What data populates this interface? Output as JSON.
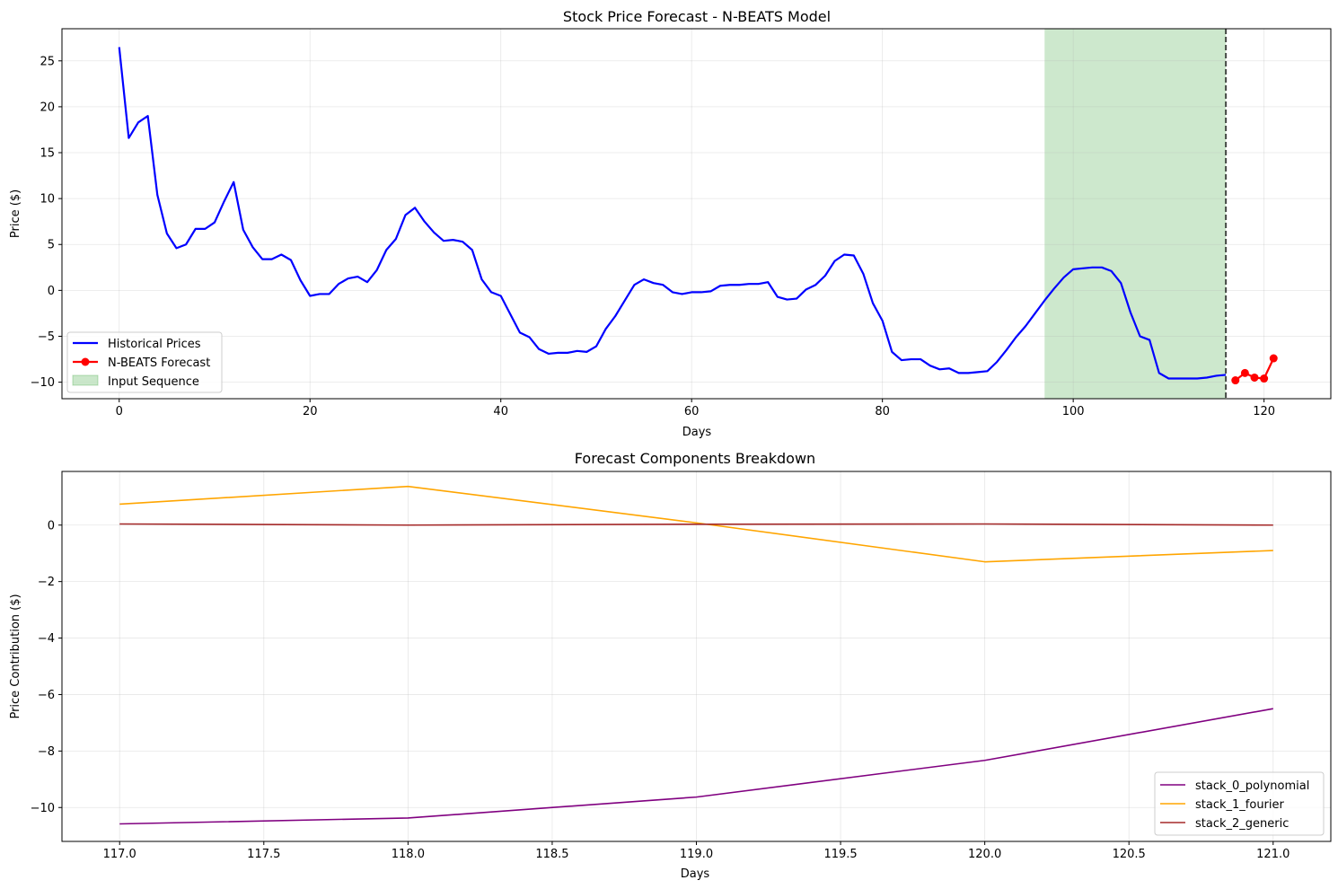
{
  "chart_data": [
    {
      "type": "line",
      "title": "Stock Price Forecast - N-BEATS Model",
      "xlabel": "Days",
      "ylabel": "Price ($)",
      "xlim": [
        -6,
        127
      ],
      "ylim": [
        -11.8,
        28.5
      ],
      "xticks": [
        0,
        20,
        40,
        60,
        80,
        100,
        120
      ],
      "yticks": [
        -10,
        -5,
        0,
        5,
        10,
        15,
        20,
        25
      ],
      "grid": true,
      "legend_position": "lower-left",
      "legend": [
        "Historical Prices",
        "N-BEATS Forecast",
        "Input Sequence"
      ],
      "input_sequence": {
        "label": "Input Sequence",
        "x_start": 97,
        "x_end": 116,
        "color": "#2ca02c"
      },
      "forecast_start_marker": {
        "x": 116,
        "color": "#000000",
        "style": "dashed"
      },
      "series": [
        {
          "name": "Historical Prices",
          "color": "#0000ff",
          "x": [
            0,
            1,
            2,
            3,
            4,
            5,
            6,
            7,
            8,
            9,
            10,
            11,
            12,
            13,
            14,
            15,
            16,
            17,
            18,
            19,
            20,
            21,
            22,
            23,
            24,
            25,
            26,
            27,
            28,
            29,
            30,
            31,
            32,
            33,
            34,
            35,
            36,
            37,
            38,
            39,
            40,
            41,
            42,
            43,
            44,
            45,
            46,
            47,
            48,
            49,
            50,
            51,
            52,
            53,
            54,
            55,
            56,
            57,
            58,
            59,
            60,
            61,
            62,
            63,
            64,
            65,
            66,
            67,
            68,
            69,
            70,
            71,
            72,
            73,
            74,
            75,
            76,
            77,
            78,
            79,
            80,
            81,
            82,
            83,
            84,
            85,
            86,
            87,
            88,
            89,
            90,
            91,
            92,
            93,
            94,
            95,
            96,
            97,
            98,
            99,
            100,
            101,
            102,
            103,
            104,
            105,
            106,
            107,
            108,
            109,
            110,
            111,
            112,
            113,
            114,
            115,
            116
          ],
          "values": [
            26.5,
            16.6,
            18.3,
            19.0,
            10.4,
            6.2,
            4.6,
            5.0,
            6.7,
            6.7,
            7.4,
            9.7,
            11.8,
            6.6,
            4.7,
            3.4,
            3.4,
            3.9,
            3.3,
            1.1,
            -0.6,
            -0.4,
            -0.4,
            0.7,
            1.3,
            1.5,
            0.9,
            2.2,
            4.4,
            5.6,
            8.2,
            9.0,
            7.5,
            6.3,
            5.4,
            5.5,
            5.3,
            4.4,
            1.2,
            -0.2,
            -0.6,
            -2.6,
            -4.6,
            -5.1,
            -6.4,
            -6.9,
            -6.8,
            -6.8,
            -6.6,
            -6.7,
            -6.1,
            -4.2,
            -2.8,
            -1.1,
            0.6,
            1.2,
            0.8,
            0.6,
            -0.2,
            -0.4,
            -0.2,
            -0.2,
            -0.1,
            0.5,
            0.6,
            0.6,
            0.7,
            0.7,
            0.9,
            -0.7,
            -1.0,
            -0.9,
            0.1,
            0.6,
            1.6,
            3.2,
            3.9,
            3.8,
            1.8,
            -1.4,
            -3.3,
            -6.7,
            -7.6,
            -7.5,
            -7.5,
            -8.2,
            -8.6,
            -8.5,
            -9.0,
            -9.0,
            -8.9,
            -8.8,
            -7.8,
            -6.5,
            -5.1,
            -3.9,
            -2.5,
            -1.1,
            0.2,
            1.4,
            2.3,
            2.4,
            2.5,
            2.5,
            2.1,
            0.8,
            -2.4,
            -5.0,
            -5.4,
            -9.0,
            -9.6,
            -9.6,
            -9.6,
            -9.6,
            -9.5,
            -9.3,
            -9.2
          ]
        },
        {
          "name": "N-BEATS Forecast",
          "color": "#ff0000",
          "markers": true,
          "x": [
            117,
            118,
            119,
            120,
            121
          ],
          "values": [
            -9.8,
            -9.0,
            -9.5,
            -9.6,
            -7.4
          ]
        }
      ]
    },
    {
      "type": "line",
      "title": "Forecast Components Breakdown",
      "xlabel": "Days",
      "ylabel": "Price Contribution ($)",
      "xlim": [
        116.8,
        121.2
      ],
      "ylim": [
        -11.2,
        1.9
      ],
      "xticks": [
        117.0,
        117.5,
        118.0,
        118.5,
        119.0,
        119.5,
        120.0,
        120.5,
        121.0
      ],
      "xtick_labels": [
        "117.0",
        "117.5",
        "118.0",
        "118.5",
        "119.0",
        "119.5",
        "120.0",
        "120.5",
        "121.0"
      ],
      "yticks": [
        -10,
        -8,
        -6,
        -4,
        -2,
        0
      ],
      "grid": true,
      "legend_position": "lower-right",
      "legend": [
        "stack_0_polynomial",
        "stack_1_fourier",
        "stack_2_generic"
      ],
      "series": [
        {
          "name": "stack_0_polynomial",
          "color": "#800080",
          "x": [
            117,
            118,
            119,
            120,
            121
          ],
          "values": [
            -10.58,
            -10.37,
            -9.63,
            -8.33,
            -6.5
          ]
        },
        {
          "name": "stack_1_fourier",
          "color": "#ffa500",
          "x": [
            117,
            118,
            119,
            120,
            121
          ],
          "values": [
            0.74,
            1.37,
            0.08,
            -1.3,
            -0.9
          ]
        },
        {
          "name": "stack_2_generic",
          "color": "#a52a2a",
          "x": [
            117,
            118,
            119,
            120,
            121
          ],
          "values": [
            0.04,
            0.0,
            0.03,
            0.04,
            0.0
          ]
        }
      ]
    }
  ]
}
